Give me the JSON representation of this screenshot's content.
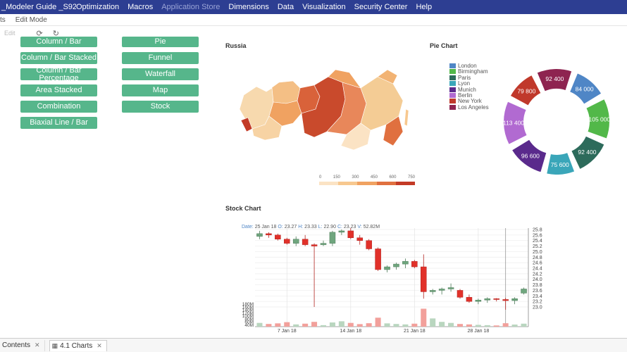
{
  "header": {
    "app_title": "_Modeler Guide _S92...",
    "menu": [
      {
        "label": "Optimization",
        "disabled": false
      },
      {
        "label": "Macros",
        "disabled": false
      },
      {
        "label": "Application Store",
        "disabled": true
      },
      {
        "label": "Dimensions",
        "disabled": false
      },
      {
        "label": "Data",
        "disabled": false
      },
      {
        "label": "Visualization",
        "disabled": false
      },
      {
        "label": "Security Center",
        "disabled": false
      },
      {
        "label": "Help",
        "disabled": false
      }
    ]
  },
  "subbar": {
    "items": [
      "ts",
      "Edit Mode"
    ]
  },
  "toolbar": {
    "edit_label": "Edit",
    "refresh_icon": "refresh-icon",
    "sync_icon": "sync-icon"
  },
  "buttons": {
    "left": [
      "Column / Bar",
      "Column / Bar Stacked",
      "Column / Bar Percentage",
      "Area Stacked",
      "Combination",
      "Biaxial Line / Bar"
    ],
    "right": [
      "Pie",
      "Funnel",
      "Waterfall",
      "Map",
      "Stock"
    ]
  },
  "map": {
    "title": "Russia",
    "legend_ticks": [
      "0",
      "150",
      "300",
      "450",
      "600",
      "750"
    ],
    "legend_colors": [
      "#fbe3c4",
      "#f7c88f",
      "#f0a261",
      "#e0703f",
      "#c33a26"
    ]
  },
  "pie": {
    "title": "Pie Chart",
    "legend": [
      {
        "name": "London",
        "color": "#4f86c6"
      },
      {
        "name": "Birmingham",
        "color": "#52b849"
      },
      {
        "name": "Paris",
        "color": "#2d6b5b"
      },
      {
        "name": "Lyon",
        "color": "#3aa6b9"
      },
      {
        "name": "Munich",
        "color": "#5a2a8c"
      },
      {
        "name": "Berlin",
        "color": "#b16ad1"
      },
      {
        "name": "New York",
        "color": "#c0392b"
      },
      {
        "name": "Los Angeles",
        "color": "#8e2450"
      }
    ]
  },
  "stock": {
    "title": "Stock Chart",
    "info": {
      "date_label": "Date:",
      "date": "25 Jan 18",
      "o_label": "O:",
      "o": "23.27",
      "h_label": "H:",
      "h": "23.33",
      "l_label": "L:",
      "l": "22.90",
      "c_label": "C:",
      "c": "23.23",
      "v_label": "V:",
      "v": "52.82M"
    }
  },
  "tabs": [
    {
      "label": "Contents",
      "active": false
    },
    {
      "label": "4.1 Charts",
      "active": true
    }
  ],
  "chart_data": [
    {
      "type": "pie",
      "title": "Pie Chart",
      "categories": [
        "London",
        "Birmingham",
        "Paris",
        "Lyon",
        "Munich",
        "Berlin",
        "New York",
        "Los Angeles"
      ],
      "labels": [
        "84 000",
        "105 000",
        "92 400",
        "75 600",
        "96 600",
        "113 400",
        "79 800",
        "92 400"
      ],
      "values": [
        84000,
        105000,
        92400,
        75600,
        96600,
        113400,
        79800,
        92400
      ],
      "colors": [
        "#4f86c6",
        "#52b849",
        "#2d6b5b",
        "#3aa6b9",
        "#5a2a8c",
        "#b16ad1",
        "#c0392b",
        "#8e2450"
      ],
      "legend": "left",
      "donut": true
    },
    {
      "type": "candlestick",
      "title": "Stock Chart",
      "x_ticks": [
        "7 Jan 18",
        "14 Jan 18",
        "21 Jan 18",
        "28 Jan 18"
      ],
      "y_ticks": [
        "23.0",
        "23.2",
        "23.4",
        "23.6",
        "23.8",
        "24.0",
        "24.2",
        "24.4",
        "24.6",
        "24.8",
        "25.0",
        "25.2",
        "25.4",
        "25.6",
        "25.8"
      ],
      "ylim": [
        22.95,
        25.85
      ],
      "volume_ticks": [
        "180M",
        "160M",
        "140M",
        "120M",
        "100M",
        "80M",
        "60M",
        "40M"
      ],
      "volume_lim": [
        30,
        190
      ],
      "ohlc": [
        [
          25.55,
          25.75,
          25.45,
          25.65,
          55
        ],
        [
          25.65,
          25.7,
          25.5,
          25.6,
          48
        ],
        [
          25.6,
          25.65,
          25.4,
          25.45,
          52
        ],
        [
          25.45,
          25.5,
          25.25,
          25.3,
          60
        ],
        [
          25.3,
          25.55,
          25.2,
          25.45,
          45
        ],
        [
          25.45,
          25.6,
          25.2,
          25.25,
          50
        ],
        [
          25.25,
          25.3,
          23.0,
          25.2,
          62
        ],
        [
          25.25,
          25.4,
          25.2,
          25.3,
          40
        ],
        [
          25.3,
          25.75,
          25.2,
          25.7,
          58
        ],
        [
          25.7,
          25.8,
          25.6,
          25.75,
          66
        ],
        [
          25.75,
          25.85,
          25.45,
          25.5,
          55
        ],
        [
          25.5,
          25.6,
          25.25,
          25.4,
          47
        ],
        [
          25.4,
          25.45,
          25.05,
          25.1,
          53
        ],
        [
          25.1,
          25.15,
          24.3,
          24.35,
          90
        ],
        [
          24.35,
          24.5,
          24.25,
          24.45,
          52
        ],
        [
          24.45,
          24.6,
          24.35,
          24.55,
          48
        ],
        [
          24.55,
          24.75,
          24.4,
          24.65,
          45
        ],
        [
          24.65,
          24.7,
          24.4,
          24.45,
          50
        ],
        [
          24.45,
          24.9,
          23.3,
          23.55,
          150
        ],
        [
          23.55,
          23.65,
          23.45,
          23.6,
          85
        ],
        [
          23.6,
          23.7,
          23.45,
          23.65,
          62
        ],
        [
          23.65,
          23.85,
          23.55,
          23.7,
          55
        ],
        [
          23.6,
          23.65,
          23.3,
          23.35,
          48
        ],
        [
          23.35,
          23.45,
          23.15,
          23.2,
          45
        ],
        [
          23.2,
          23.3,
          23.1,
          23.25,
          42
        ],
        [
          23.25,
          23.35,
          23.15,
          23.3,
          40
        ],
        [
          23.3,
          23.32,
          23.2,
          23.28,
          38
        ],
        [
          23.27,
          23.33,
          22.9,
          23.23,
          53
        ],
        [
          23.23,
          23.35,
          23.1,
          23.3,
          44
        ],
        [
          23.5,
          23.7,
          23.45,
          23.65,
          50
        ]
      ]
    }
  ]
}
